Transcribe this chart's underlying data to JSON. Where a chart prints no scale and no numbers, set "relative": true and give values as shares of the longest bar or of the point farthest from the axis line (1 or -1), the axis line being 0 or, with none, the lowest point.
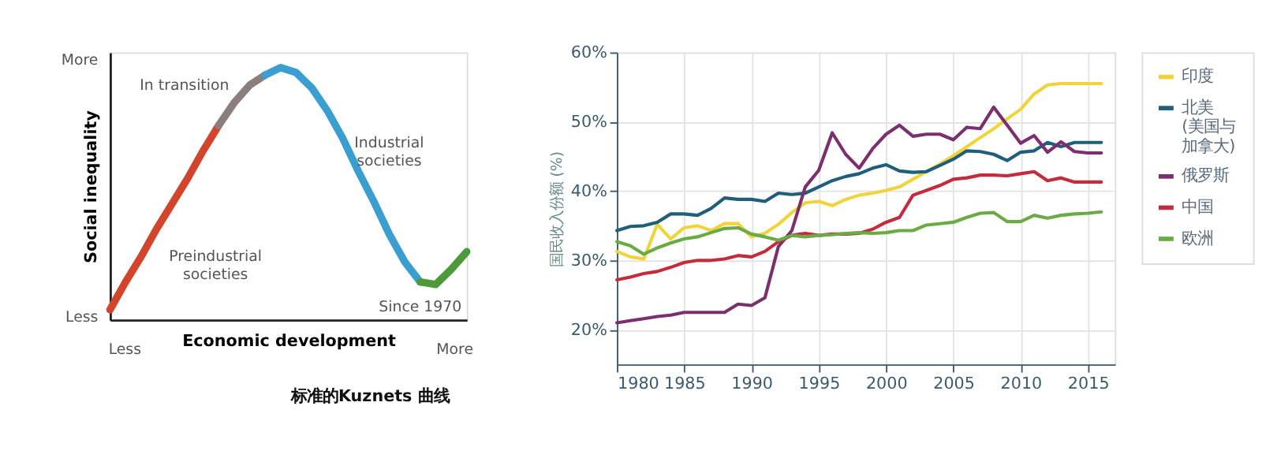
{
  "chart_data": [
    {
      "type": "line",
      "relative": true,
      "xlabel": "Economic development",
      "ylabel": "Social inequality",
      "categories": [
        null,
        null,
        null,
        null,
        null,
        null,
        null,
        null,
        null,
        null,
        null,
        null,
        null,
        null,
        null,
        null,
        null,
        null,
        null,
        null,
        null,
        null,
        null,
        null
      ],
      "series": [
        {
          "color": "#d2452c",
          "values": [
            0.04,
            0.15,
            0.25,
            0.36,
            0.46,
            0.56,
            0.67,
            0.77,
            null,
            null,
            null,
            null,
            null,
            null,
            null,
            null,
            null,
            null,
            null,
            null,
            null,
            null,
            null,
            null
          ]
        },
        {
          "color": "#8a7f7c",
          "values": [
            null,
            null,
            null,
            null,
            null,
            null,
            null,
            0.77,
            0.86,
            0.93,
            0.97,
            null,
            null,
            null,
            null,
            null,
            null,
            null,
            null,
            null,
            null,
            null,
            null,
            null
          ]
        },
        {
          "color": "#3a9fd0",
          "values": [
            null,
            null,
            null,
            null,
            null,
            null,
            null,
            null,
            null,
            null,
            0.97,
            1.0,
            0.98,
            0.92,
            0.83,
            0.72,
            0.59,
            0.47,
            0.34,
            0.23,
            0.15,
            null,
            null,
            null
          ]
        },
        {
          "color": "#4e9a3a",
          "values": [
            null,
            null,
            null,
            null,
            null,
            null,
            null,
            null,
            null,
            null,
            null,
            null,
            null,
            null,
            null,
            null,
            null,
            null,
            null,
            null,
            0.15,
            0.14,
            0.2,
            0.27
          ]
        }
      ],
      "annotations": [
        "In transition",
        "Industrial\nsocieties",
        "Preindustrial\nsocieties",
        "Since 1970",
        "More",
        "Less",
        "Less",
        "More",
        "标准的Kuznets 曲线"
      ]
    },
    {
      "type": "line",
      "ylabel": "国民收入份额 (%)",
      "grid": true,
      "legend": "top right",
      "x": [
        1980,
        1981,
        1982,
        1983,
        1984,
        1985,
        1986,
        1987,
        1988,
        1989,
        1990,
        1991,
        1992,
        1993,
        1994,
        1995,
        1996,
        1997,
        1998,
        1999,
        2000,
        2001,
        2002,
        2003,
        2004,
        2005,
        2006,
        2007,
        2008,
        2009,
        2010,
        2011,
        2012,
        2013,
        2014,
        2015,
        2016
      ],
      "xlim": [
        1980,
        2017
      ],
      "xticks": [
        1980,
        1985,
        1990,
        1995,
        2000,
        2005,
        2010,
        2015
      ],
      "ylim": [
        15,
        60
      ],
      "yticks": [
        {
          "value": 20,
          "label": "20%"
        },
        {
          "value": 30,
          "label": "30%"
        },
        {
          "value": 40,
          "label": "40%"
        },
        {
          "value": 50,
          "label": "50%"
        },
        {
          "value": 60,
          "label": "60%"
        }
      ],
      "series": [
        {
          "name": "印度",
          "color": "#f2d43a",
          "values": [
            31.3,
            30.5,
            30.2,
            35.2,
            33.1,
            34.7,
            35,
            34.3,
            35.3,
            35.3,
            33.4,
            33.9,
            35.2,
            36.9,
            38.3,
            38.5,
            37.9,
            38.8,
            39.4,
            39.7,
            40.1,
            40.6,
            41.7,
            42.8,
            43.9,
            45.1,
            46.4,
            47.7,
            49,
            50.4,
            51.8,
            54,
            55.3,
            55.5,
            55.5,
            55.5,
            55.5
          ]
        },
        {
          "name": "北美(美国与加拿大)",
          "color": "#1f5f7c",
          "values": [
            34.3,
            34.9,
            35,
            35.5,
            36.7,
            36.7,
            36.5,
            37.5,
            39,
            38.8,
            38.8,
            38.5,
            39.7,
            39.5,
            39.7,
            40.6,
            41.5,
            42.1,
            42.5,
            43.3,
            43.8,
            42.9,
            42.7,
            42.8,
            43.7,
            44.6,
            45.8,
            45.7,
            45.3,
            44.4,
            45.6,
            45.8,
            47,
            46.4,
            47,
            47,
            47
          ]
        },
        {
          "name": "俄罗斯",
          "color": "#7c2f6f",
          "values": [
            21,
            21.3,
            21.6,
            21.9,
            22.1,
            22.5,
            22.5,
            22.5,
            22.5,
            23.7,
            23.5,
            24.6,
            32,
            34.3,
            40.6,
            43,
            48.4,
            45.3,
            43.3,
            46.1,
            48.2,
            49.5,
            47.9,
            48.2,
            48.2,
            47.4,
            49.2,
            49,
            52.1,
            49.5,
            46.9,
            48,
            45.6,
            47.1,
            45.7,
            45.5,
            45.5
          ]
        },
        {
          "name": "中国",
          "color": "#c42c3e",
          "values": [
            27.2,
            27.6,
            28.1,
            28.4,
            29,
            29.7,
            30,
            30,
            30.2,
            30.7,
            30.5,
            31.3,
            32.7,
            33.6,
            33.9,
            33.6,
            33.8,
            33.8,
            33.9,
            34.5,
            35.5,
            36.2,
            39.4,
            40.1,
            40.8,
            41.7,
            41.9,
            42.3,
            42.3,
            42.2,
            42.5,
            42.8,
            41.5,
            41.9,
            41.3,
            41.3,
            41.3
          ]
        },
        {
          "name": "欧洲",
          "color": "#6aab45",
          "values": [
            32.7,
            32.1,
            30.9,
            31.8,
            32.5,
            33.1,
            33.4,
            34,
            34.6,
            34.7,
            33.8,
            33.4,
            32.9,
            33.6,
            33.4,
            33.6,
            33.7,
            33.9,
            34,
            33.9,
            34,
            34.3,
            34.3,
            35.1,
            35.3,
            35.5,
            36.2,
            36.8,
            36.9,
            35.6,
            35.6,
            36.5,
            36.1,
            36.5,
            36.7,
            36.8,
            37
          ]
        }
      ]
    }
  ]
}
